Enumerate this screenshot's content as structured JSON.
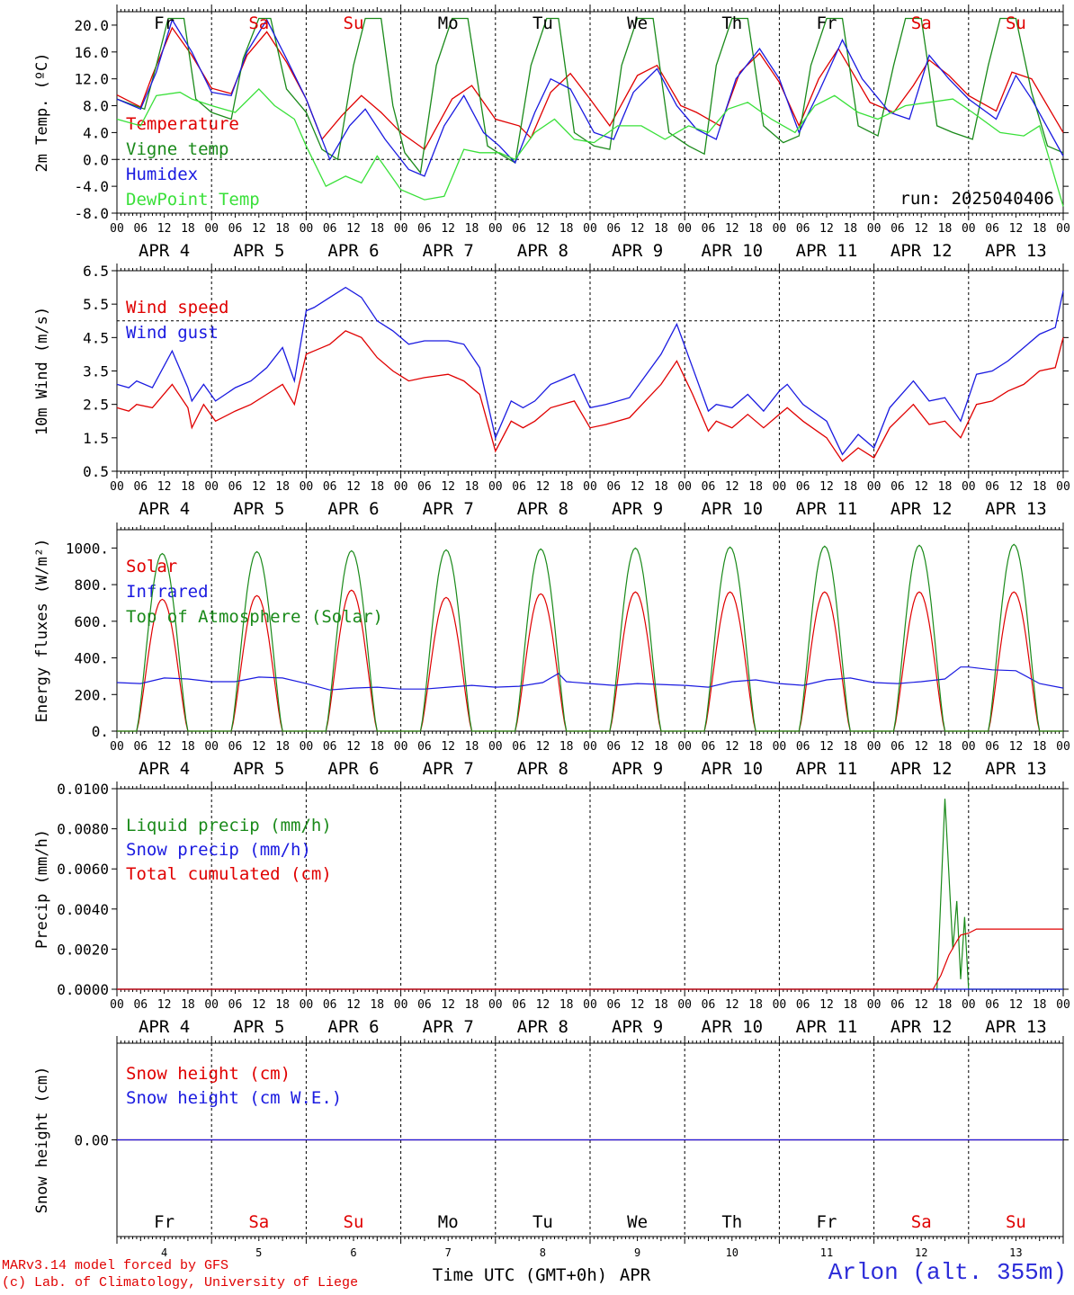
{
  "run_label": "run: 2025040406",
  "credits": [
    "MARv3.14 model forced by GFS",
    "(c) Lab. of Climatology, University of Liege"
  ],
  "station": "Arlon (alt. 355m)",
  "x_axis_title": "Time UTC (GMT+0h)",
  "x_axis_month": "APR",
  "day_names": [
    "Fr",
    "Sa",
    "Su",
    "Mo",
    "Tu",
    "We",
    "Th",
    "Fr",
    "Sa",
    "Su"
  ],
  "weekend_day_color": "#e00000",
  "weekday_color": "#000000",
  "day_labels": [
    "APR  4",
    "APR  5",
    "APR  6",
    "APR  7",
    "APR  8",
    "APR  9",
    "APR 10",
    "APR 11",
    "APR 12",
    "APR 13"
  ],
  "day_numbers": [
    "4",
    "5",
    "6",
    "7",
    "8",
    "9",
    "10",
    "11",
    "12",
    "13"
  ],
  "hour_ticks": [
    "00",
    "06",
    "12",
    "18"
  ],
  "chart_data": [
    {
      "type": "line",
      "ylabel": "2m Temp. (ºC)",
      "ylim": [
        -8,
        22
      ],
      "yticks": [
        20,
        16,
        12,
        8,
        4,
        0,
        -4,
        -8
      ],
      "ytick_labels": [
        "20.0",
        "16.0",
        "12.0",
        "8.0",
        "4.0",
        "0.0",
        "-4.0",
        "-8.0"
      ],
      "reference_line": 0,
      "x_unit": "hours since APR 4 00 UTC",
      "series": [
        {
          "name": "Temperature",
          "color": "#e00000",
          "x": [
            0,
            6,
            9,
            14,
            19,
            24,
            29,
            33,
            38,
            43,
            48,
            52,
            57,
            62,
            67,
            72,
            78,
            85,
            90,
            96,
            102,
            105,
            110,
            115,
            120,
            125,
            132,
            137,
            143,
            147,
            153,
            158,
            163,
            168,
            173,
            178,
            183,
            187,
            191,
            197,
            202,
            206,
            211,
            216,
            223,
            227,
            232,
            240
          ],
          "values": [
            9.6,
            7.8,
            12.5,
            19.6,
            15.5,
            10.6,
            9.8,
            15.5,
            19.0,
            14.5,
            9.0,
            3.0,
            6.5,
            9.5,
            7.0,
            4.0,
            1.5,
            9.0,
            11.0,
            6.0,
            5.0,
            3.2,
            10.0,
            12.8,
            9.0,
            5.0,
            12.5,
            14.0,
            8.0,
            7.0,
            5.0,
            13.0,
            15.8,
            11.5,
            5.0,
            12.0,
            16.5,
            12.5,
            8.5,
            7.0,
            11.0,
            14.8,
            12.5,
            9.5,
            7.2,
            13.0,
            12.0,
            4.0
          ]
        },
        {
          "name": "Vigne temp",
          "color": "#1a8a1a",
          "x": [
            0,
            7,
            10,
            13,
            17,
            20,
            24,
            29,
            32,
            36,
            39,
            43,
            48,
            52,
            56,
            60,
            63,
            67,
            70,
            73,
            77,
            81,
            85,
            89,
            94,
            98,
            101,
            105,
            109,
            112,
            116,
            121,
            125,
            128,
            132,
            136,
            140,
            145,
            149,
            152,
            156,
            160,
            164,
            169,
            173,
            176,
            180,
            184,
            188,
            193,
            197,
            200,
            204,
            208,
            212,
            217,
            221,
            224,
            228,
            232,
            236,
            240
          ],
          "values": [
            9.0,
            7.5,
            14.0,
            21.0,
            21.0,
            9.0,
            7.0,
            6.0,
            15.0,
            21.0,
            21.0,
            10.5,
            7.0,
            1.5,
            0.0,
            14.0,
            21.0,
            21.0,
            8.0,
            1.0,
            -2.0,
            14.0,
            21.0,
            21.0,
            2.0,
            0.5,
            -0.5,
            14.0,
            21.0,
            21.0,
            4.0,
            2.0,
            1.5,
            14.0,
            21.0,
            21.0,
            4.0,
            2.0,
            0.8,
            14.0,
            21.0,
            21.0,
            5.0,
            2.5,
            3.5,
            14.0,
            21.0,
            21.0,
            5.0,
            3.5,
            14.0,
            21.0,
            21.0,
            5.0,
            4.0,
            3.0,
            14.0,
            21.0,
            21.0,
            10.0,
            2.0,
            1.0
          ]
        },
        {
          "name": "Humidex",
          "color": "#1a1ae0",
          "x": [
            0,
            6,
            10,
            14,
            19,
            24,
            29,
            33,
            38,
            43,
            48,
            54,
            59,
            63,
            68,
            74,
            78,
            83,
            88,
            93,
            97,
            101,
            106,
            110,
            115,
            121,
            126,
            131,
            137,
            142,
            147,
            152,
            157,
            163,
            168,
            173,
            178,
            184,
            189,
            196,
            201,
            206,
            211,
            216,
            223,
            228,
            232,
            240
          ],
          "values": [
            9.0,
            7.5,
            13.0,
            20.8,
            16.0,
            10.0,
            9.5,
            16.0,
            20.8,
            15.0,
            9.0,
            0.0,
            5.0,
            7.5,
            3.0,
            -1.5,
            -2.5,
            5.0,
            9.5,
            4.0,
            2.0,
            -0.5,
            7.0,
            12.0,
            10.5,
            4.0,
            3.0,
            10.0,
            13.5,
            8.0,
            4.5,
            3.0,
            12.0,
            16.5,
            12.0,
            4.0,
            10.0,
            17.8,
            12.0,
            7.0,
            6.0,
            15.5,
            12.0,
            9.0,
            6.0,
            12.5,
            9.0,
            0.5
          ]
        },
        {
          "name": "DewPoint Temp",
          "color": "#3ae03a",
          "x": [
            0,
            6,
            10,
            16,
            19,
            24,
            30,
            36,
            40,
            45,
            48,
            53,
            58,
            62,
            66,
            72,
            78,
            83,
            88,
            92,
            97,
            101,
            106,
            111,
            116,
            121,
            127,
            133,
            139,
            145,
            150,
            155,
            160,
            166,
            172,
            177,
            182,
            188,
            193,
            200,
            206,
            212,
            217,
            224,
            230,
            234,
            240
          ],
          "values": [
            6.0,
            5.0,
            9.5,
            10.0,
            9.0,
            8.0,
            7.0,
            10.5,
            8.0,
            6.0,
            2.0,
            -4.0,
            -2.5,
            -3.5,
            0.5,
            -4.5,
            -6.0,
            -5.5,
            1.5,
            1.0,
            1.0,
            0.0,
            4.0,
            6.0,
            3.0,
            2.5,
            5.0,
            5.0,
            3.0,
            5.0,
            4.0,
            7.5,
            8.5,
            6.0,
            4.0,
            8.0,
            9.5,
            7.0,
            6.0,
            8.0,
            8.5,
            9.0,
            7.0,
            4.0,
            3.5,
            5.0,
            -7.0
          ]
        }
      ]
    },
    {
      "type": "line",
      "ylabel": "10m Wind (m/s)",
      "ylim": [
        0.5,
        6.5
      ],
      "yticks": [
        6.5,
        5.5,
        4.5,
        3.5,
        2.5,
        1.5,
        0.5
      ],
      "ytick_labels": [
        "6.5",
        "5.5",
        "4.5",
        "3.5",
        "2.5",
        "1.5",
        "0.5"
      ],
      "reference_line": 5.0,
      "x_unit": "hours since APR 4 00 UTC",
      "series": [
        {
          "name": "Wind speed",
          "color": "#e00000",
          "x": [
            0,
            3,
            5,
            9,
            14,
            18,
            19,
            22,
            25,
            30,
            34,
            38,
            42,
            45,
            48,
            50,
            54,
            58,
            62,
            66,
            70,
            74,
            78,
            84,
            88,
            92,
            96,
            100,
            103,
            106,
            110,
            116,
            120,
            124,
            130,
            138,
            142,
            146,
            150,
            152,
            156,
            160,
            164,
            168,
            170,
            174,
            180,
            184,
            188,
            192,
            196,
            202,
            206,
            210,
            214,
            218,
            222,
            226,
            230,
            234,
            238,
            240
          ],
          "values": [
            2.4,
            2.3,
            2.5,
            2.4,
            3.1,
            2.4,
            1.8,
            2.5,
            2.0,
            2.3,
            2.5,
            2.8,
            3.1,
            2.5,
            4.0,
            4.1,
            4.3,
            4.7,
            4.5,
            3.9,
            3.5,
            3.2,
            3.3,
            3.4,
            3.2,
            2.8,
            1.1,
            2.0,
            1.8,
            2.0,
            2.4,
            2.6,
            1.8,
            1.9,
            2.1,
            3.1,
            3.8,
            2.8,
            1.7,
            2.0,
            1.8,
            2.2,
            1.8,
            2.2,
            2.4,
            2.0,
            1.5,
            0.8,
            1.2,
            0.9,
            1.8,
            2.5,
            1.9,
            2.0,
            1.5,
            2.5,
            2.6,
            2.9,
            3.1,
            3.5,
            3.6,
            4.5
          ]
        },
        {
          "name": "Wind gust",
          "color": "#1a1ae0",
          "x": [
            0,
            3,
            5,
            9,
            14,
            18,
            19,
            22,
            25,
            30,
            34,
            38,
            42,
            45,
            48,
            50,
            54,
            58,
            62,
            66,
            70,
            74,
            78,
            84,
            88,
            92,
            96,
            100,
            103,
            106,
            110,
            116,
            120,
            124,
            130,
            138,
            142,
            146,
            150,
            152,
            156,
            160,
            164,
            168,
            170,
            174,
            180,
            184,
            188,
            192,
            196,
            202,
            206,
            210,
            214,
            218,
            222,
            226,
            230,
            234,
            238,
            240
          ],
          "values": [
            3.1,
            3.0,
            3.2,
            3.0,
            4.1,
            3.0,
            2.6,
            3.1,
            2.6,
            3.0,
            3.2,
            3.6,
            4.2,
            3.2,
            5.3,
            5.4,
            5.7,
            6.0,
            5.7,
            5.0,
            4.7,
            4.3,
            4.4,
            4.4,
            4.3,
            3.6,
            1.5,
            2.6,
            2.4,
            2.6,
            3.1,
            3.4,
            2.4,
            2.5,
            2.7,
            4.0,
            4.9,
            3.6,
            2.3,
            2.5,
            2.4,
            2.8,
            2.3,
            2.9,
            3.1,
            2.5,
            2.0,
            1.0,
            1.6,
            1.2,
            2.4,
            3.2,
            2.6,
            2.7,
            2.0,
            3.4,
            3.5,
            3.8,
            4.2,
            4.6,
            4.8,
            5.9
          ]
        }
      ]
    },
    {
      "type": "line",
      "ylabel": "Energy fluxes (W/m²)",
      "ylim": [
        0,
        1100
      ],
      "yticks": [
        1000,
        800,
        600,
        400,
        200,
        0
      ],
      "ytick_labels": [
        "1000.",
        "800.",
        "600.",
        "400.",
        "200.",
        "0."
      ],
      "daily_peak_hour_utc": 12,
      "sunrise_hour_utc": 5,
      "sunset_hour_utc": 18,
      "series": [
        {
          "name": "Solar",
          "color": "#e00000",
          "daily_peak": [
            720,
            740,
            770,
            730,
            750,
            760,
            760,
            760,
            760,
            760
          ]
        },
        {
          "name": "Infrared",
          "color": "#1a1ae0",
          "x": [
            0,
            6,
            12,
            18,
            24,
            30,
            36,
            42,
            48,
            54,
            60,
            66,
            72,
            78,
            84,
            90,
            96,
            102,
            108,
            112,
            114,
            120,
            126,
            132,
            138,
            144,
            150,
            156,
            162,
            168,
            174,
            180,
            186,
            192,
            198,
            204,
            210,
            214,
            216,
            222,
            228,
            234,
            240
          ],
          "values": [
            265,
            260,
            290,
            285,
            270,
            270,
            295,
            290,
            260,
            225,
            235,
            240,
            230,
            230,
            240,
            250,
            240,
            245,
            265,
            315,
            270,
            260,
            250,
            260,
            255,
            250,
            240,
            270,
            280,
            260,
            250,
            280,
            290,
            265,
            260,
            270,
            285,
            350,
            350,
            335,
            330,
            260,
            235
          ]
        },
        {
          "name": "Top of Atmosphere (Solar)",
          "color": "#1a8a1a",
          "daily_peak": [
            970,
            980,
            985,
            990,
            995,
            1000,
            1005,
            1010,
            1015,
            1020
          ]
        }
      ]
    },
    {
      "type": "line",
      "ylabel": "Precip (mm/h)",
      "ylim": [
        0,
        0.01
      ],
      "yticks": [
        0.01,
        0.008,
        0.006,
        0.004,
        0.002,
        0.0
      ],
      "ytick_labels": [
        "0.0100",
        "0.0080",
        "0.0060",
        "0.0040",
        "0.0020",
        "0.0000"
      ],
      "series": [
        {
          "name": "Liquid precip (mm/h)",
          "color": "#1a8a1a",
          "x": [
            0,
            208,
            210,
            212,
            213,
            214,
            215,
            216,
            217,
            218,
            219,
            220,
            240
          ],
          "values": [
            0,
            0,
            0.0095,
            0.002,
            0.0044,
            0.0005,
            0.0036,
            0,
            0,
            0,
            0,
            0,
            0
          ]
        },
        {
          "name": "Snow precip (mm/h)",
          "color": "#1a1ae0",
          "x": [
            0,
            240
          ],
          "values": [
            0,
            0
          ]
        },
        {
          "name": "Total cumulated (cm)",
          "color": "#e00000",
          "x": [
            0,
            207,
            209,
            211,
            213,
            214,
            216,
            218,
            240
          ],
          "values": [
            0,
            0,
            0.0007,
            0.0017,
            0.0024,
            0.0027,
            0.0028,
            0.003,
            0.003
          ]
        }
      ]
    },
    {
      "type": "line",
      "ylabel": "Snow height (cm)",
      "ylim": [
        -1,
        1
      ],
      "yticks": [
        0.0
      ],
      "ytick_labels": [
        "0.00"
      ],
      "series": [
        {
          "name": "Snow height (cm)",
          "color": "#e00000",
          "x": [
            0,
            240
          ],
          "values": [
            0,
            0
          ]
        },
        {
          "name": "Snow height (cm W.E.)",
          "color": "#1a1ae0",
          "x": [
            0,
            240
          ],
          "values": [
            0,
            0
          ]
        }
      ]
    }
  ]
}
